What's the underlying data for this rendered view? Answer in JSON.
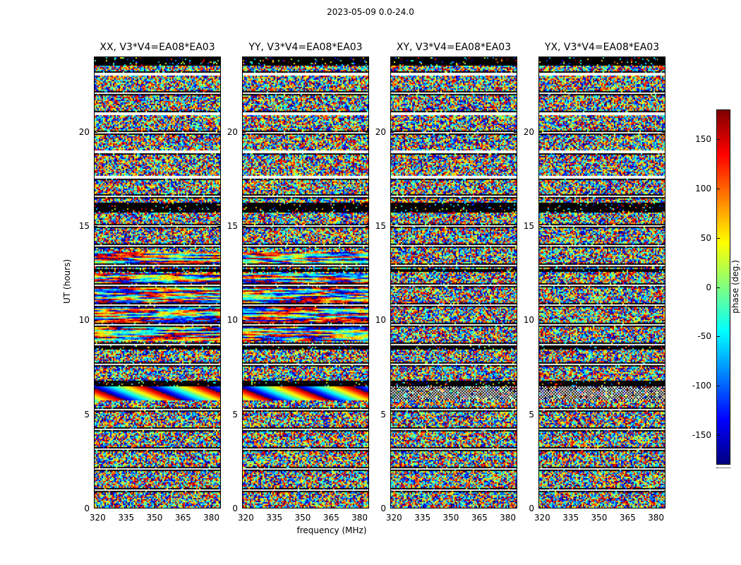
{
  "figure": {
    "title": "2023-05-09 0.0-24.0"
  },
  "chart_data": {
    "type": "heatmap",
    "title": "2023-05-09 0.0-24.0",
    "xlabel": "frequency (MHz)",
    "ylabel": "UT (hours)",
    "x_range": [
      318,
      385
    ],
    "x_ticks": [
      "320",
      "335",
      "350",
      "365",
      "380"
    ],
    "y_range": [
      0,
      24
    ],
    "y_ticks": [
      "0",
      "5",
      "10",
      "15",
      "20"
    ],
    "panels": [
      {
        "title": "XX, V3*V4=EA08*EA03",
        "polarization": "XX",
        "baseline": "V3*V4=EA08*EA03",
        "coherent_features": true
      },
      {
        "title": "YY, V3*V4=EA08*EA03",
        "polarization": "YY",
        "baseline": "V3*V4=EA08*EA03",
        "coherent_features": true
      },
      {
        "title": "XY, V3*V4=EA08*EA03",
        "polarization": "XY",
        "baseline": "V3*V4=EA08*EA03",
        "coherent_features": false
      },
      {
        "title": "YX, V3*V4=EA08*EA03",
        "polarization": "YX",
        "baseline": "V3*V4=EA08*EA03",
        "coherent_features": false
      }
    ],
    "colorbar": {
      "label": "phase (deg.)",
      "range": [
        -180,
        180
      ],
      "ticks": [
        "150",
        "100",
        "50",
        "0",
        "-50",
        "-100",
        "-150"
      ],
      "tick_values": [
        150,
        100,
        50,
        0,
        -50,
        -100,
        -150
      ],
      "colormap": "jet"
    },
    "values_description": "Interferometric visibility phase versus frequency (MHz, x) and UT (hours, y) for baseline EA08*EA03; mostly uniform random phase noise in [-180,180] deg, with flagged white time rows at roughly hourly scan boundaries (black-edged), solid black saturated bands, a smooth phase-wrapping rainbow band near UT 5.8-6.4 in XX/YY (fine black/white striping at the same times in XY/YX), and coherent horizontal phase streaks between roughly UT 8.9-12.5 in XX/YY.",
    "features": {
      "time_gaps_ut": [
        0.95,
        2.05,
        3.1,
        4.2,
        5.25,
        7.65,
        8.7,
        9.75,
        10.8,
        11.85,
        12.9,
        13.95,
        15.0,
        16.6,
        17.6,
        18.95,
        20.0,
        21.0,
        22.1,
        23.1
      ],
      "black_bands_ut": [
        [
          23.55,
          24.0
        ],
        [
          15.75,
          16.25
        ],
        [
          12.55,
          12.75
        ],
        [
          8.45,
          8.6
        ],
        [
          6.5,
          6.78
        ]
      ],
      "smooth_phase_band_ut": [
        5.75,
        6.45
      ],
      "coherent_streak_bands_ut": [
        [
          8.85,
          12.5
        ],
        [
          13.05,
          13.6
        ]
      ]
    }
  }
}
